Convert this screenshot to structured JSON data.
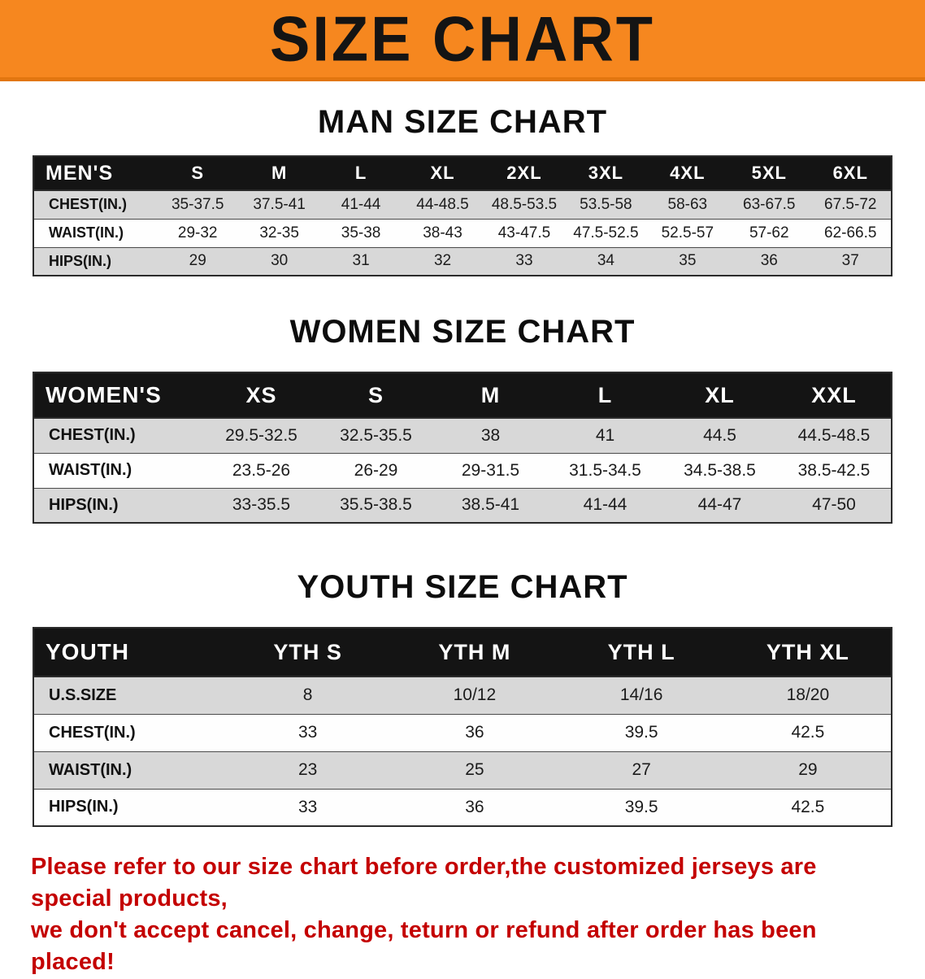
{
  "banner": {
    "title": "SIZE CHART",
    "bg_color": "#f6871f"
  },
  "colors": {
    "header_bar": "#141414",
    "stripe_row": "#d8d8d8",
    "footer_text": "#c40000"
  },
  "sections": [
    {
      "heading": "MAN SIZE CHART",
      "table": {
        "label": "MEN'S",
        "columns": [
          "S",
          "M",
          "L",
          "XL",
          "2XL",
          "3XL",
          "4XL",
          "5XL",
          "6XL"
        ],
        "rows": [
          {
            "label": "CHEST(IN.)",
            "values": [
              "35-37.5",
              "37.5-41",
              "41-44",
              "44-48.5",
              "48.5-53.5",
              "53.5-58",
              "58-63",
              "63-67.5",
              "67.5-72"
            ]
          },
          {
            "label": "WAIST(IN.)",
            "values": [
              "29-32",
              "32-35",
              "35-38",
              "38-43",
              "43-47.5",
              "47.5-52.5",
              "52.5-57",
              "57-62",
              "62-66.5"
            ]
          },
          {
            "label": "HIPS(IN.)",
            "values": [
              "29",
              "30",
              "31",
              "32",
              "33",
              "34",
              "35",
              "36",
              "37"
            ]
          }
        ]
      }
    },
    {
      "heading": "WOMEN SIZE CHART",
      "table": {
        "label": "WOMEN'S",
        "columns": [
          "XS",
          "S",
          "M",
          "L",
          "XL",
          "XXL"
        ],
        "rows": [
          {
            "label": "CHEST(IN.)",
            "values": [
              "29.5-32.5",
              "32.5-35.5",
              "38",
              "41",
              "44.5",
              "44.5-48.5"
            ]
          },
          {
            "label": "WAIST(IN.)",
            "values": [
              "23.5-26",
              "26-29",
              "29-31.5",
              "31.5-34.5",
              "34.5-38.5",
              "38.5-42.5"
            ]
          },
          {
            "label": "HIPS(IN.)",
            "values": [
              "33-35.5",
              "35.5-38.5",
              "38.5-41",
              "41-44",
              "44-47",
              "47-50"
            ]
          }
        ]
      }
    },
    {
      "heading": "YOUTH SIZE CHART",
      "table": {
        "label": "YOUTH",
        "columns": [
          "YTH S",
          "YTH M",
          "YTH L",
          "YTH XL"
        ],
        "rows": [
          {
            "label": "U.S.SIZE",
            "values": [
              "8",
              "10/12",
              "14/16",
              "18/20"
            ]
          },
          {
            "label": "CHEST(IN.)",
            "values": [
              "33",
              "36",
              "39.5",
              "42.5"
            ]
          },
          {
            "label": "WAIST(IN.)",
            "values": [
              "23",
              "25",
              "27",
              "29"
            ]
          },
          {
            "label": "HIPS(IN.)",
            "values": [
              "33",
              "36",
              "39.5",
              "42.5"
            ]
          }
        ]
      }
    }
  ],
  "footer": {
    "line1": "Please refer to our size chart before order,the customized jerseys are special products,",
    "line2": "we don't accept cancel, change, teturn or refund after order has been placed!"
  }
}
